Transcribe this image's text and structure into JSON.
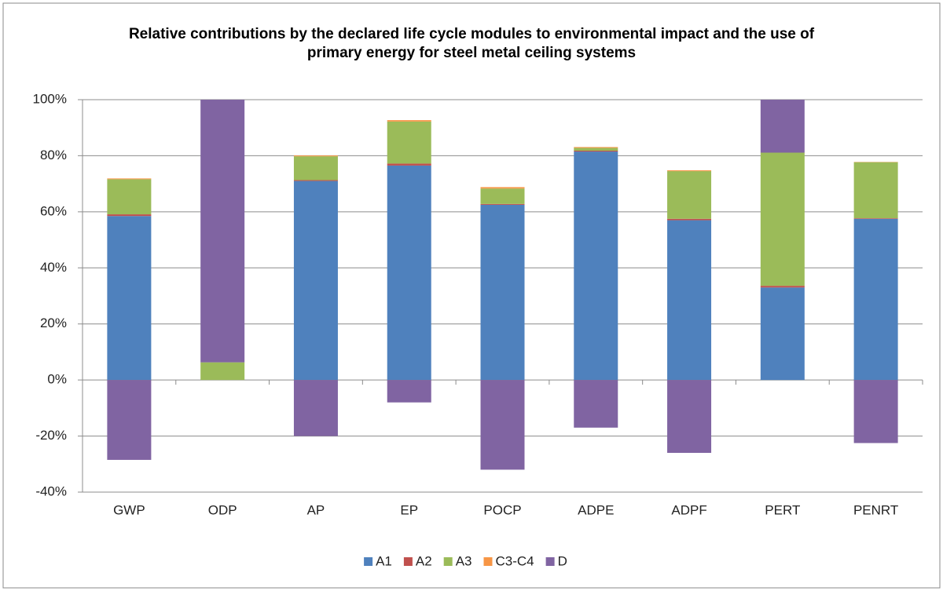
{
  "chart_data": {
    "type": "stacked_bar",
    "title": "Relative contributions by the declared life cycle modules to environmental impact and the use of primary energy for steel metal ceiling systems",
    "categories": [
      "GWP",
      "ODP",
      "AP",
      "EP",
      "POCP",
      "ADPE",
      "ADPF",
      "PERT",
      "PENRT"
    ],
    "series": [
      {
        "name": "A1",
        "color": "#4f81bd",
        "values": [
          58.5,
          0,
          71,
          76.5,
          62.5,
          81.5,
          57,
          33,
          57.5
        ]
      },
      {
        "name": "A2",
        "color": "#c0504d",
        "values": [
          0.6,
          0,
          0.3,
          0.7,
          0.3,
          0.3,
          0.5,
          0.6,
          0.2
        ]
      },
      {
        "name": "A3",
        "color": "#9bbb59",
        "values": [
          12.5,
          6.3,
          8.5,
          15,
          5.5,
          1,
          17,
          47.5,
          20
        ]
      },
      {
        "name": "C3-C4",
        "color": "#f79646",
        "values": [
          0.3,
          0,
          0.3,
          0.5,
          0.5,
          0.3,
          0.3,
          0,
          0.1
        ]
      },
      {
        "name": "D",
        "color": "#8064a2",
        "values": [
          -28.5,
          93.7,
          -20,
          -8,
          -32,
          -17,
          -26,
          18.9,
          -22.5
        ]
      }
    ],
    "ylim": [
      -40,
      100
    ],
    "yticks": [
      {
        "value": -40,
        "label": "-40%"
      },
      {
        "value": -20,
        "label": "-20%"
      },
      {
        "value": 0,
        "label": "0%"
      },
      {
        "value": 20,
        "label": "20%"
      },
      {
        "value": 40,
        "label": "40%"
      },
      {
        "value": 60,
        "label": "60%"
      },
      {
        "value": 80,
        "label": "80%"
      },
      {
        "value": 100,
        "label": "100%"
      }
    ],
    "grid": true
  }
}
